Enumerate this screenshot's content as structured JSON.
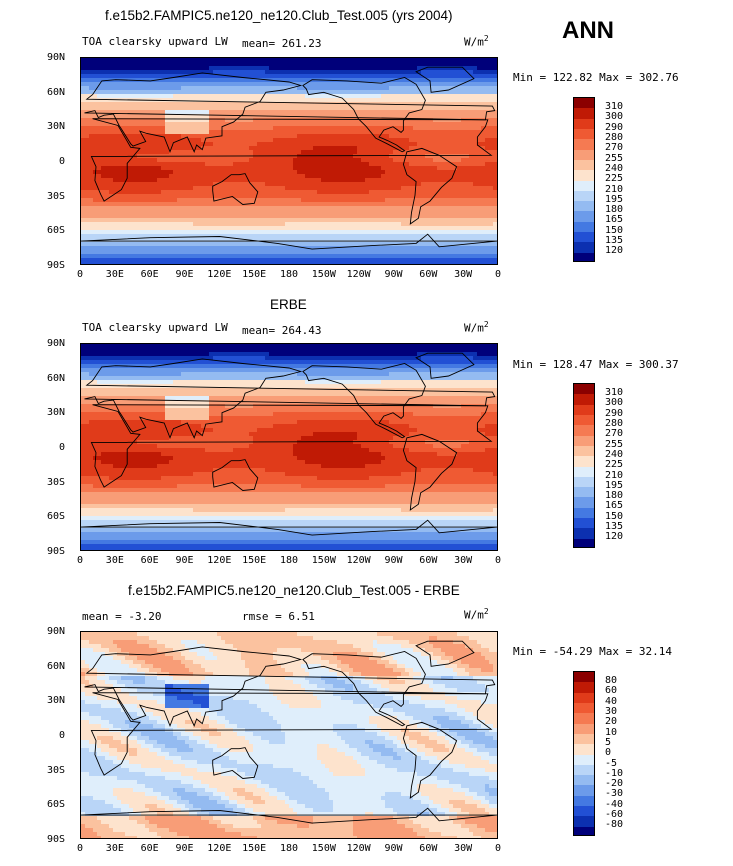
{
  "page": {
    "season": "ANN",
    "unit_prefix": "W/m",
    "unit_sup": "2"
  },
  "xticks": [
    "0",
    "30E",
    "60E",
    "90E",
    "120E",
    "150E",
    "180",
    "150W",
    "120W",
    "90W",
    "60W",
    "30W",
    "0"
  ],
  "yticks": [
    "90N",
    "60N",
    "30N",
    "0",
    "30S",
    "60S",
    "90S"
  ],
  "panels": [
    {
      "title": "f.e15b2.FAMPIC5.ne120_ne120.Club_Test.005 (yrs 2004)",
      "left_label": "TOA clearsky upward LW",
      "mean_label": "mean= 261.23",
      "rmse_label": "",
      "minmax": "Min = 122.82 Max = 302.76",
      "colorbar_labels": [
        "310",
        "300",
        "290",
        "280",
        "270",
        "255",
        "240",
        "225",
        "210",
        "195",
        "180",
        "165",
        "150",
        "135",
        "120"
      ],
      "colorbar_colors": [
        "#8b0000",
        "#c01a05",
        "#e03b1a",
        "#ef5a33",
        "#f57a52",
        "#f89d77",
        "#fbc29f",
        "#fde3cd",
        "#dfeefb",
        "#b9d5f7",
        "#94bbf1",
        "#6c9bea",
        "#4479e2",
        "#2250d4",
        "#0c30b0",
        "#00007a"
      ],
      "map_kind": "olr"
    },
    {
      "title": "ERBE",
      "left_label": "TOA clearsky upward LW",
      "mean_label": "mean= 264.43",
      "rmse_label": "",
      "minmax": "Min = 128.47 Max = 300.37",
      "colorbar_labels": [
        "310",
        "300",
        "290",
        "280",
        "270",
        "255",
        "240",
        "225",
        "210",
        "195",
        "180",
        "165",
        "150",
        "135",
        "120"
      ],
      "colorbar_colors": [
        "#8b0000",
        "#c01a05",
        "#e03b1a",
        "#ef5a33",
        "#f57a52",
        "#f89d77",
        "#fbc29f",
        "#fde3cd",
        "#dfeefb",
        "#b9d5f7",
        "#94bbf1",
        "#6c9bea",
        "#4479e2",
        "#2250d4",
        "#0c30b0",
        "#00007a"
      ],
      "map_kind": "olr"
    },
    {
      "title": "f.e15b2.FAMPIC5.ne120_ne120.Club_Test.005 - ERBE",
      "left_label": "mean = -3.20",
      "mean_label": "",
      "rmse_label": "rmse = 6.51",
      "minmax": "Min = -54.29 Max = 32.14",
      "colorbar_labels": [
        "80",
        "60",
        "40",
        "30",
        "20",
        "10",
        "5",
        "0",
        "-5",
        "-10",
        "-20",
        "-30",
        "-40",
        "-60",
        "-80"
      ],
      "colorbar_colors": [
        "#8b0000",
        "#c01a05",
        "#e03b1a",
        "#ef5a33",
        "#f57a52",
        "#f89d77",
        "#fbc29f",
        "#fde3cd",
        "#dfeefb",
        "#b9d5f7",
        "#94bbf1",
        "#6c9bea",
        "#4479e2",
        "#2250d4",
        "#0c30b0",
        "#00007a"
      ],
      "map_kind": "diff"
    }
  ]
}
